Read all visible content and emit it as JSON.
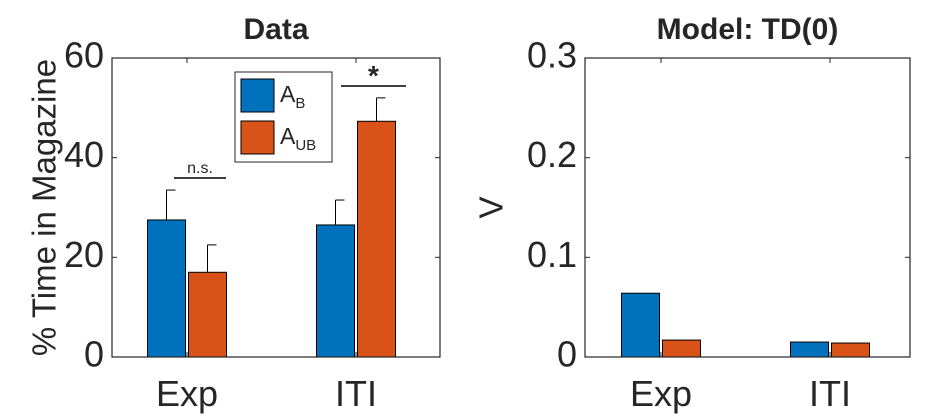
{
  "chart_data": [
    {
      "type": "bar",
      "title": "Data",
      "ylabel": "% Time in Magazine",
      "xlabel": "",
      "categories": [
        "Exp",
        "ITI"
      ],
      "ylim": [
        0,
        60
      ],
      "yticks": [
        "0",
        "20",
        "40",
        "60"
      ],
      "series": [
        {
          "name": "A_B",
          "label_main": "A",
          "label_sub": "B",
          "color": "#0072BD",
          "values": [
            27.5,
            26.5
          ],
          "errors": [
            6.0,
            5.0
          ]
        },
        {
          "name": "A_UB",
          "label_main": "A",
          "label_sub": "UB",
          "color": "#D95319",
          "values": [
            17.0,
            47.3
          ],
          "errors": [
            5.5,
            4.7
          ]
        }
      ],
      "annotations": [
        {
          "category": "Exp",
          "text": "n.s."
        },
        {
          "category": "ITI",
          "text": "*"
        }
      ],
      "legend_position": "top-right"
    },
    {
      "type": "bar",
      "title": "Model: TD(0)",
      "ylabel": "V",
      "xlabel": "",
      "categories": [
        "Exp",
        "ITI"
      ],
      "ylim": [
        0,
        0.3
      ],
      "yticks": [
        "0",
        "0.1",
        "0.2",
        "0.3"
      ],
      "series": [
        {
          "color": "#0072BD",
          "values": [
            0.064,
            0.015
          ]
        },
        {
          "color": "#D95319",
          "values": [
            0.017,
            0.014
          ]
        }
      ]
    }
  ]
}
